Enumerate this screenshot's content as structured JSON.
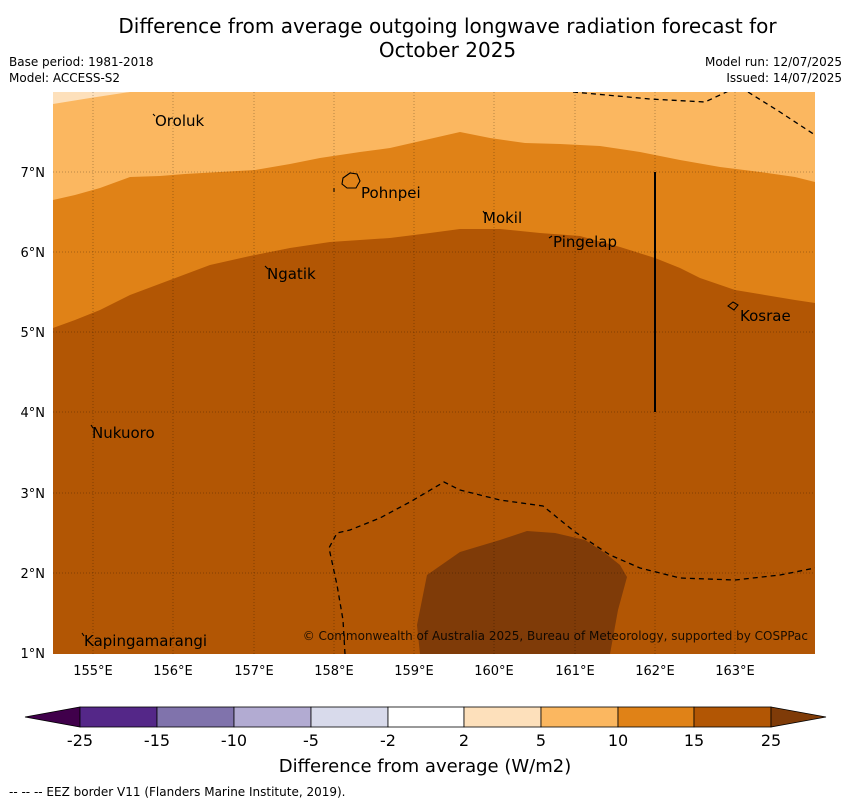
{
  "title_line1": "Difference from average outgoing longwave radiation forecast for",
  "title_line2": "October 2025",
  "meta": {
    "base_period": "Base period: 1981-2018",
    "model": "Model: ACCESS-S2",
    "model_run": "Model run: 12/07/2025",
    "issued": "Issued: 14/07/2025"
  },
  "places": {
    "oroluk": "Oroluk",
    "pohnpei": "Pohnpei",
    "mokil": "Mokil",
    "pingelap": "Pingelap",
    "ngatik": "Ngatik",
    "kosrae": "Kosrae",
    "nukuoro": "Nukuoro",
    "kapingamarangi": "Kapingamarangi"
  },
  "lat_labels": [
    "7°N",
    "6°N",
    "5°N",
    "4°N",
    "3°N",
    "2°N",
    "1°N"
  ],
  "lon_labels": [
    "155°E",
    "156°E",
    "157°E",
    "158°E",
    "159°E",
    "160°E",
    "161°E",
    "162°E",
    "163°E"
  ],
  "copyright": "© Commonwealth of Australia 2025, Bureau of Meteorology, supported by COSPPac",
  "colorbar": {
    "ticks": [
      "-25",
      "-15",
      "-10",
      "-5",
      "-2",
      "2",
      "5",
      "10",
      "15",
      "25"
    ],
    "title": "Difference from average (W/m2)"
  },
  "colors": {
    "band_2_5": "#fde0bb",
    "band_5_10": "#fbb760",
    "band_10_15": "#e08217",
    "band_15_25": "#b25604",
    "band_25_plus": "#7f3b08",
    "neg_25": "#40004b",
    "neg_15_25": "#542788",
    "neg_10_15": "#8073ac",
    "neg_5_10": "#b2abd2",
    "neg_2_5": "#d8daeb",
    "neutral": "#ffffff"
  },
  "footer": "--  --  -- EEZ border V11 (Flanders Marine Institute, 2019)."
}
